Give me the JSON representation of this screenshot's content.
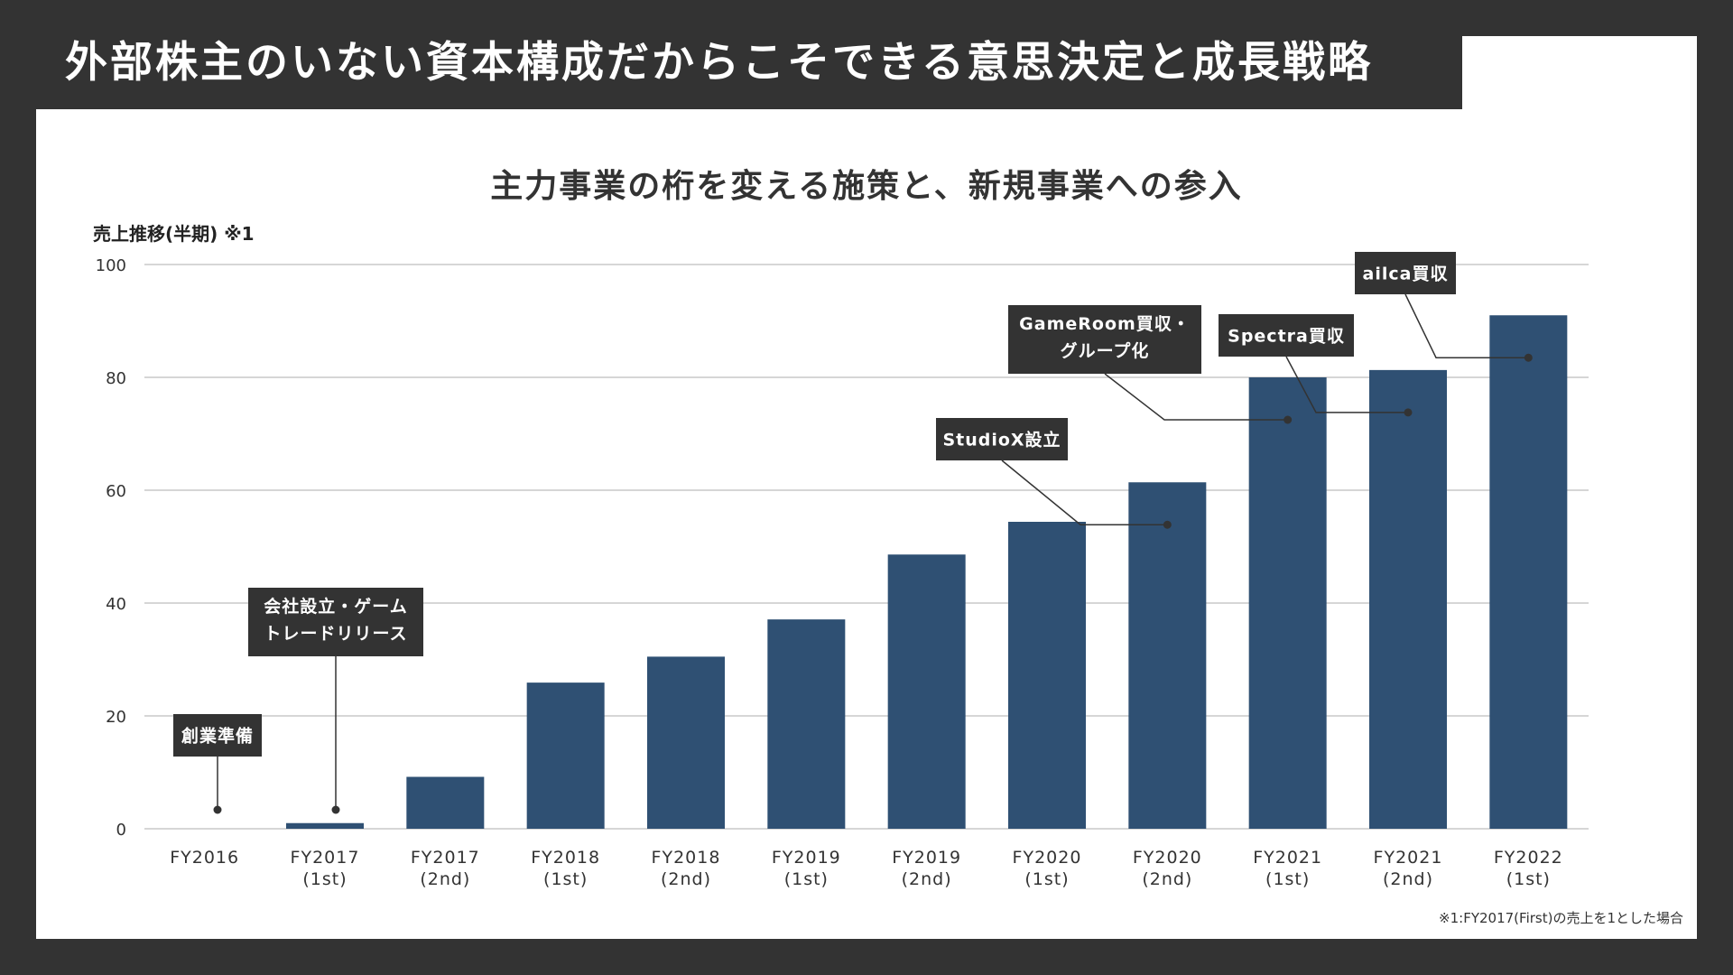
{
  "header": {
    "title": "外部株主のいない資本構成だからこそできる意思決定と成長戦略"
  },
  "footnote": "※1:FY2017(First)の売上を1とした場合",
  "colors": {
    "bar": "#2f5073",
    "background": "#333333",
    "panel": "#ffffff",
    "label_box": "#333333"
  },
  "chart_data": {
    "type": "bar",
    "title": "主力事業の桁を変える施策と、新規事業への参入",
    "ylabel": "売上推移(半期) ※1",
    "ylim": [
      0,
      100
    ],
    "yticks": [
      0,
      20,
      40,
      60,
      80,
      100
    ],
    "grid": true,
    "categories": [
      [
        "FY2016",
        ""
      ],
      [
        "FY2017",
        "(1st)"
      ],
      [
        "FY2017",
        "(2nd)"
      ],
      [
        "FY2018",
        "(1st)"
      ],
      [
        "FY2018",
        "(2nd)"
      ],
      [
        "FY2019",
        "(1st)"
      ],
      [
        "FY2019",
        "(2nd)"
      ],
      [
        "FY2020",
        "(1st)"
      ],
      [
        "FY2020",
        "(2nd)"
      ],
      [
        "FY2021",
        "(1st)"
      ],
      [
        "FY2021",
        "(2nd)"
      ],
      [
        "FY2022",
        "(1st)"
      ]
    ],
    "values": [
      0,
      1,
      9.2,
      25.9,
      30.5,
      37.1,
      48.6,
      54.4,
      61.4,
      80,
      81.3,
      91
    ],
    "annotations": [
      {
        "index": 0,
        "lines": [
          "創業準備"
        ]
      },
      {
        "index": 1,
        "lines": [
          "会社設立・ゲーム",
          "トレードリリース"
        ]
      },
      {
        "index": 8,
        "lines": [
          "StudioX設立"
        ]
      },
      {
        "index": 9,
        "lines": [
          "GameRoom買収・",
          "グループ化"
        ]
      },
      {
        "index": 10,
        "lines": [
          "Spectra買収"
        ]
      },
      {
        "index": 11,
        "lines": [
          "ailca買収"
        ]
      }
    ]
  }
}
